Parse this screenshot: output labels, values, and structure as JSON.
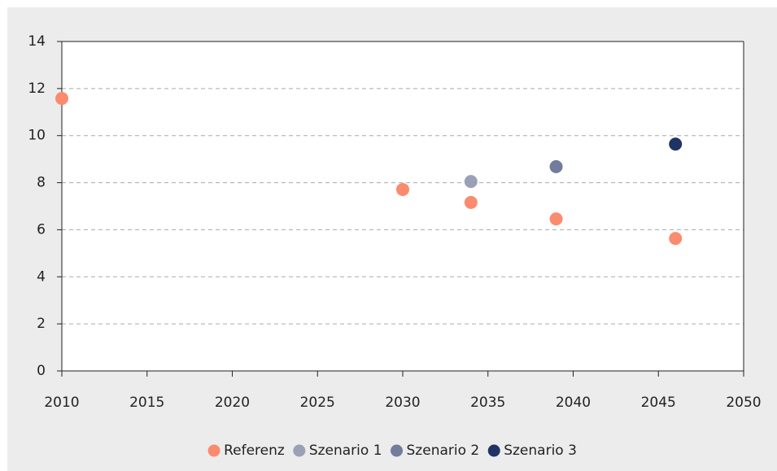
{
  "chart_data": {
    "type": "scatter",
    "series": [
      {
        "name": "Referenz",
        "color": "#fb8b6e",
        "x": [
          2010,
          2030,
          2034,
          2039,
          2046
        ],
        "values": [
          11.58,
          7.71,
          7.16,
          6.46,
          5.63
        ]
      },
      {
        "name": "Szenario 1",
        "color": "#9aa0b5",
        "x": [
          2034
        ],
        "values": [
          8.05
        ]
      },
      {
        "name": "Szenario 2",
        "color": "#737c9c",
        "x": [
          2039
        ],
        "values": [
          8.68
        ]
      },
      {
        "name": "Szenario 3",
        "color": "#1f3464",
        "x": [
          2046
        ],
        "values": [
          9.64
        ]
      }
    ],
    "xlim": [
      2010,
      2050
    ],
    "xticks": [
      2010,
      2015,
      2020,
      2025,
      2030,
      2035,
      2040,
      2045,
      2050
    ],
    "ylim": [
      0,
      14
    ],
    "yticks": [
      0,
      2,
      4,
      6,
      8,
      10,
      12,
      14
    ],
    "grid": true,
    "legend": "bottom"
  }
}
